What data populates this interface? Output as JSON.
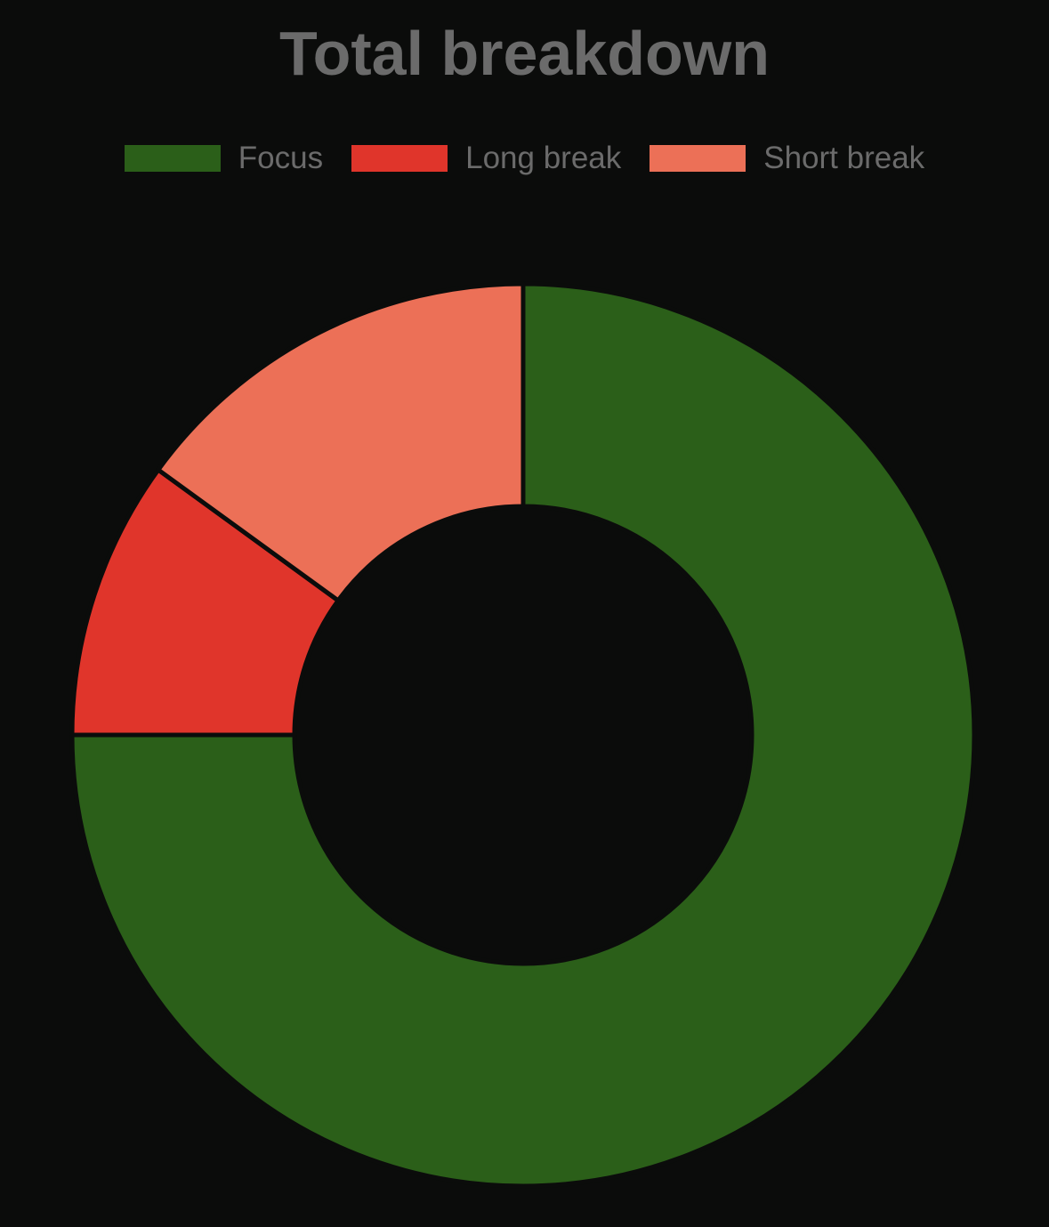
{
  "chart_data": {
    "type": "pie",
    "subtype": "doughnut",
    "title": "Total breakdown",
    "legend_position": "top",
    "categories": [
      "Focus",
      "Long break",
      "Short break"
    ],
    "values": [
      75,
      10,
      15
    ],
    "unit": "percent of total",
    "colors": [
      "#2b5f19",
      "#e0352b",
      "#ec7057"
    ],
    "background": "#0b0c0b",
    "text_color": "#6b6b6b"
  }
}
